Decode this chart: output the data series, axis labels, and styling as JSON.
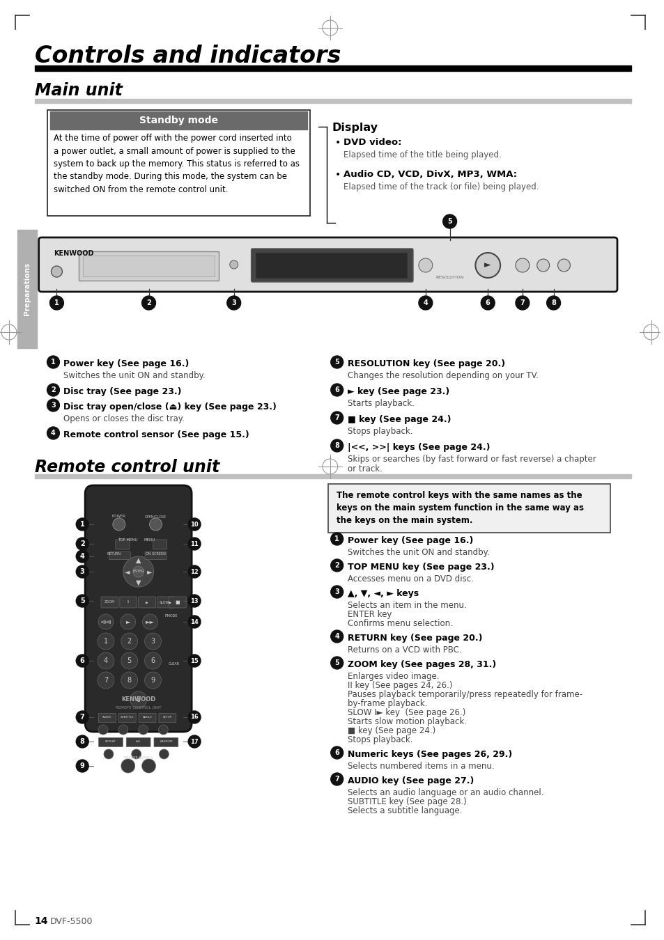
{
  "title": "Controls and indicators",
  "section1": "Main unit",
  "section2": "Remote control unit",
  "bg_color": "#ffffff",
  "standby_header": "Standby mode",
  "standby_header_bg": "#6a6a6a",
  "standby_header_text_color": "#ffffff",
  "standby_text": "At the time of power off with the power cord inserted into\na power outlet, a small amount of power is supplied to the\nsystem to back up the memory. This status is referred to as\nthe standby mode. During this mode, the system can be\nswitched ON from the remote control unit.",
  "display_title": "Display",
  "display_b1_bold": "DVD video:",
  "display_b1_text": "Elapsed time of the title being played.",
  "display_b2_bold": "Audio CD, VCD, DivX, MP3, WMA:",
  "display_b2_text": "Elapsed time of the track (or file) being played.",
  "main_left": [
    {
      "num": "1",
      "bold": "Power key (See page 16.)",
      "text": "Switches the unit ON and standby."
    },
    {
      "num": "2",
      "bold": "Disc tray (See page 23.)",
      "text": ""
    },
    {
      "num": "3",
      "bold": "Disc tray open/close (⏏) key (See page 23.)",
      "text": "Opens or closes the disc tray."
    },
    {
      "num": "4",
      "bold": "Remote control sensor (See page 15.)",
      "text": ""
    }
  ],
  "main_right": [
    {
      "num": "5",
      "bold": "RESOLUTION key (See page 20.)",
      "text": "Changes the resolution depending on your TV."
    },
    {
      "num": "6",
      "bold": "► key (See page 23.)",
      "text": "Starts playback."
    },
    {
      "num": "7",
      "bold": "■ key (See page 24.)",
      "text": "Stops playback."
    },
    {
      "num": "8",
      "bold": "|<<, >>| keys (See page 24.)",
      "text": "Skips or searches (by fast forward or fast reverse) a chapter\nor track."
    }
  ],
  "remote_note": "The remote control keys with the same names as the\nkeys on the main system function in the same way as\nthe keys on the main system.",
  "remote_left": [
    {
      "num": "1",
      "bold": "Power key (See page 16.)",
      "text": "Switches the unit ON and standby."
    },
    {
      "num": "2",
      "bold": "TOP MENU key (See page 23.)",
      "text": "Accesses menu on a DVD disc."
    },
    {
      "num": "3",
      "bold": "▲, ▼, ◄, ► keys",
      "text": "Selects an item in the menu.\nENTER key\nConfirms menu selection."
    },
    {
      "num": "4",
      "bold": "RETURN key (See page 20.)",
      "text": "Returns on a VCD with PBC."
    },
    {
      "num": "5",
      "bold": "ZOOM key (See pages 28, 31.)",
      "text": "Enlarges video image.\nII key (See pages 24, 26.)\nPauses playback temporarily/press repeatedly for frame-\nby-frame playback.\nSLOW I► key  (See page 26.)\nStarts slow motion playback.\n■ key (See page 24.)\nStops playback."
    },
    {
      "num": "6",
      "bold": "Numeric keys (See pages 26, 29.)",
      "text": "Selects numbered items in a menu."
    },
    {
      "num": "7",
      "bold": "AUDIO key (See page 27.)",
      "text": "Selects an audio language or an audio channel.\nSUBTITLE key (See page 28.)\nSelects a subtitle language."
    }
  ],
  "page_num": "14",
  "model": "DVF-5500",
  "preparations_label": "Preparations"
}
